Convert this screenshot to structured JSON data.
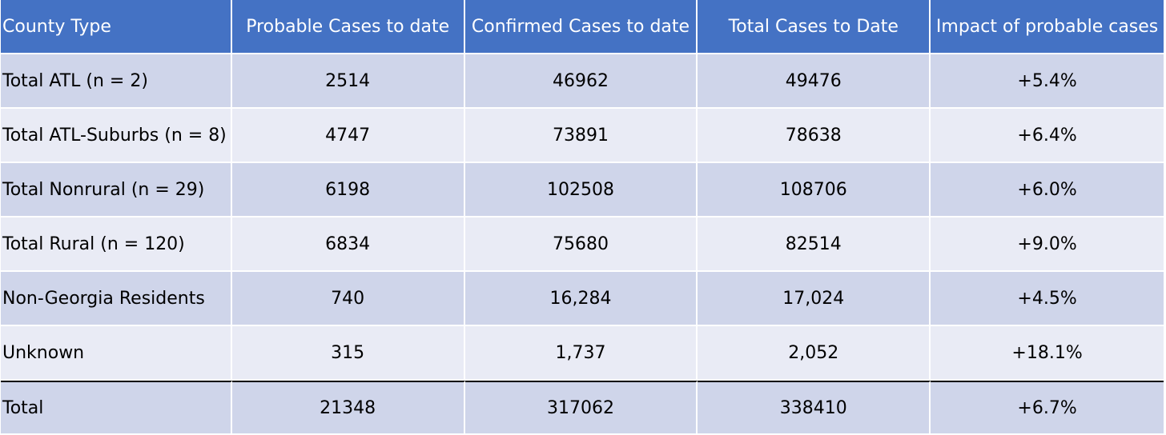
{
  "table": {
    "headers": [
      "County Type",
      "Probable Cases to date",
      "Confirmed Cases to date",
      "Total Cases to Date",
      "Impact of probable cases"
    ],
    "rows": [
      [
        "Total ATL (n = 2)",
        "2514",
        "46962",
        "49476",
        "+5.4%"
      ],
      [
        "Total ATL-Suburbs (n = 8)",
        "4747",
        "73891",
        "78638",
        "+6.4%"
      ],
      [
        "Total Nonrural (n = 29)",
        "6198",
        "102508",
        "108706",
        "+6.0%"
      ],
      [
        "Total Rural (n = 120)",
        "6834",
        "75680",
        "82514",
        "+9.0%"
      ],
      [
        "Non-Georgia Residents",
        "740",
        "16,284",
        "17,024",
        "+4.5%"
      ],
      [
        "Unknown",
        "315",
        "1,737",
        "2,052",
        "+18.1%"
      ]
    ],
    "total": [
      "Total",
      "21348",
      "317062",
      "338410",
      "+6.7%"
    ]
  },
  "colors": {
    "header_bg": "#4472c4",
    "row_odd": "#cfd5ea",
    "row_even": "#e9ebf5"
  }
}
